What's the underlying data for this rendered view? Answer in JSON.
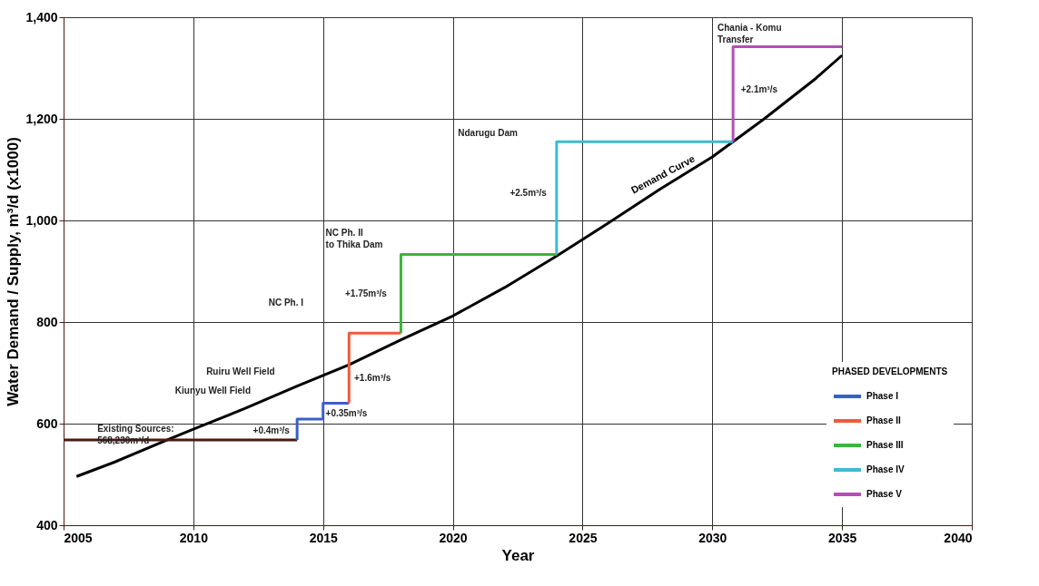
{
  "chart_data": {
    "type": "line",
    "xlabel": "Year",
    "ylabel": "Water Demand / Supply, m³/d (x1000)",
    "legend_title": "PHASED DEVELOPMENTS",
    "xlim": [
      2005,
      2040
    ],
    "xticks": [
      2005,
      2010,
      2015,
      2020,
      2025,
      2030,
      2035,
      2040
    ],
    "ylim": [
      400,
      1400
    ],
    "yticks": [
      400,
      600,
      800,
      {
        "value": 1000,
        "label": "1,000"
      },
      {
        "value": 1200,
        "label": "1,200"
      },
      {
        "value": 1400,
        "label": "1,400"
      }
    ],
    "grid": true,
    "legend": "bottom right",
    "line_style": "solid",
    "marker": "none",
    "series": [
      {
        "name": "Demand Curve",
        "color": "#000000",
        "x": [
          2005.5,
          2007,
          2009,
          2010,
          2012,
          2014,
          2016,
          2018,
          2020,
          2022,
          2024,
          2026,
          2028,
          2030,
          2032,
          2034,
          2035
        ],
        "values": [
          496,
          525,
          568,
          589,
          630,
          674,
          716,
          765,
          812,
          868,
          930,
          995,
          1062,
          1125,
          1200,
          1280,
          1325
        ]
      },
      {
        "color": "#4a1a12",
        "x": [
          2005,
          2014
        ],
        "values": [
          568,
          568
        ]
      },
      {
        "name": "Phase I",
        "color": "#3a5fc8",
        "x": [
          2014,
          2014,
          2015,
          2015,
          2016
        ],
        "values": [
          568,
          609,
          609,
          640,
          640
        ]
      },
      {
        "name": "Phase II",
        "color": "#f05a3c",
        "x": [
          2016,
          2016,
          2018
        ],
        "values": [
          640,
          778,
          778
        ]
      },
      {
        "name": "Phase III",
        "color": "#3cb43c",
        "x": [
          2018,
          2018,
          2024
        ],
        "values": [
          778,
          933,
          933
        ]
      },
      {
        "name": "Phase IV",
        "color": "#3cbcd0",
        "x": [
          2024,
          2024,
          2030.8
        ],
        "values": [
          933,
          1155,
          1155
        ]
      },
      {
        "name": "Phase V",
        "color": "#b050b8",
        "x": [
          2030.8,
          2030.8,
          2035
        ],
        "values": [
          1155,
          1342,
          1342
        ]
      }
    ],
    "annotations": [
      "Existing Sources:\n568,230m³/d",
      "+0.4m³/s",
      "+0.35m³/s",
      "Kiunyu Well Field",
      "Ruiru Well Field",
      "+1.6m³/s",
      "NC Ph. I",
      "+1.75m³/s",
      "NC Ph. II\nto Thika Dam",
      "+2.5m³/s",
      "Ndarugu Dam",
      "+2.1m³/s",
      "Chania - Komu\nTransfer"
    ]
  }
}
